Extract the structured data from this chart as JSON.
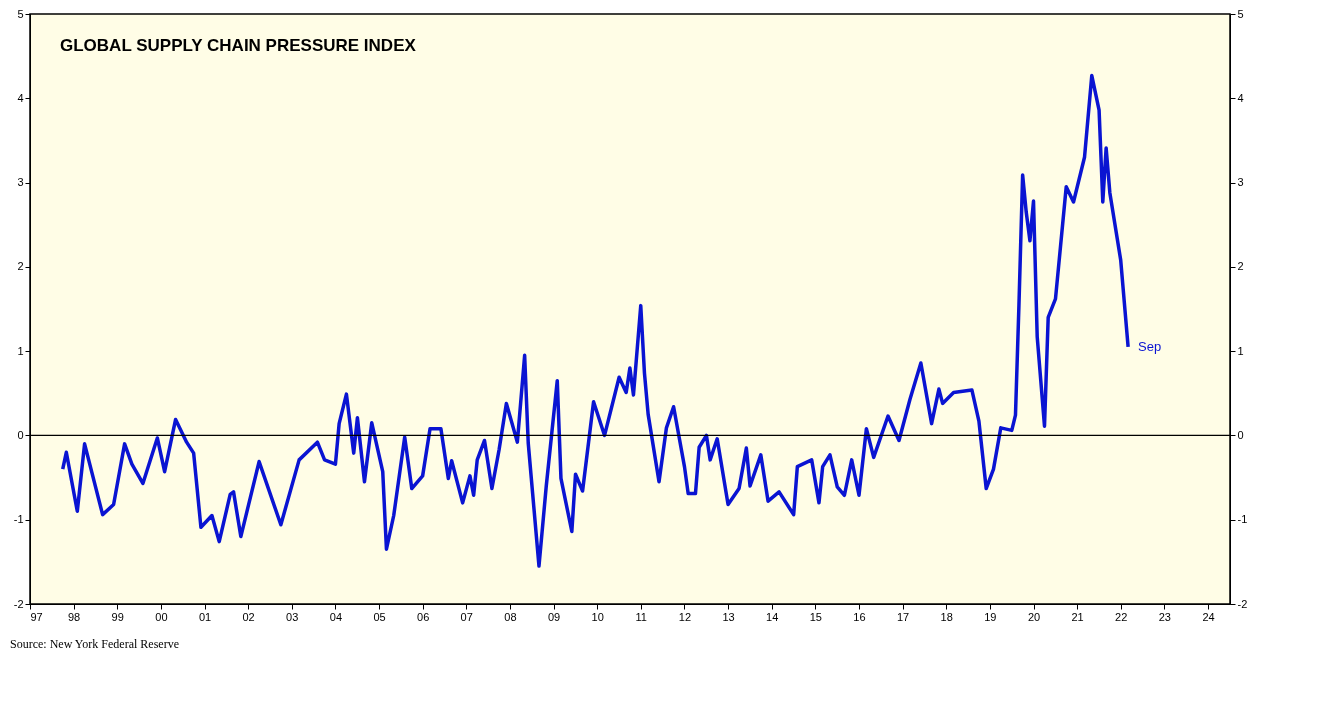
{
  "chart_data": {
    "type": "line",
    "title": "GLOBAL SUPPLY CHAIN PRESSURE INDEX",
    "x": [
      "1998-04",
      "1998-05",
      "1998-08",
      "1998-10",
      "1999-03",
      "1999-06",
      "1999-09",
      "1999-11",
      "2000-02",
      "2000-06",
      "2000-08",
      "2000-11",
      "2001-02",
      "2001-04",
      "2001-06",
      "2001-09",
      "2001-11",
      "2002-02",
      "2002-03",
      "2002-05",
      "2002-10",
      "2003-04",
      "2003-09",
      "2004-02",
      "2004-04",
      "2004-07",
      "2004-08",
      "2004-10",
      "2004-12",
      "2005-01",
      "2005-03",
      "2005-05",
      "2005-08",
      "2005-09",
      "2005-11",
      "2006-02",
      "2006-04",
      "2006-07",
      "2006-09",
      "2006-12",
      "2007-02",
      "2007-03",
      "2007-06",
      "2007-08",
      "2007-09",
      "2007-10",
      "2007-12",
      "2008-02",
      "2008-04",
      "2008-06",
      "2008-09",
      "2008-11",
      "2008-12",
      "2009-03",
      "2009-05",
      "2009-08",
      "2009-09",
      "2009-12",
      "2010-01",
      "2010-03",
      "2010-06",
      "2010-09",
      "2011-01",
      "2011-03",
      "2011-04",
      "2011-05",
      "2011-07",
      "2011-08",
      "2011-09",
      "2011-12",
      "2012-02",
      "2012-04",
      "2012-07",
      "2012-08",
      "2012-10",
      "2012-11",
      "2013-01",
      "2013-02",
      "2013-04",
      "2013-07",
      "2013-10",
      "2013-12",
      "2014-01",
      "2014-04",
      "2014-06",
      "2014-09",
      "2015-01",
      "2015-02",
      "2015-06",
      "2015-08",
      "2015-09",
      "2015-11",
      "2016-01",
      "2016-03",
      "2016-05",
      "2016-07",
      "2016-09",
      "2016-11",
      "2017-03",
      "2017-06",
      "2017-09",
      "2017-12",
      "2018-03",
      "2018-05",
      "2018-06",
      "2018-09",
      "2019-02",
      "2019-04",
      "2019-06",
      "2019-08",
      "2019-10",
      "2020-01",
      "2020-02",
      "2020-03",
      "2020-04",
      "2020-05",
      "2020-06",
      "2020-07",
      "2020-08",
      "2020-10",
      "2020-11",
      "2021-01",
      "2021-04",
      "2021-06",
      "2021-09",
      "2021-11",
      "2022-01",
      "2022-02",
      "2022-03",
      "2022-04",
      "2022-07",
      "2022-09"
    ],
    "series": [
      {
        "color": "#0a14d2",
        "values": [
          -0.4,
          -0.2,
          -0.9,
          -0.1,
          -0.94,
          -0.82,
          -0.1,
          -0.34,
          -0.57,
          -0.03,
          -0.43,
          0.19,
          -0.08,
          -0.21,
          -1.09,
          -0.95,
          -1.26,
          -0.7,
          -0.67,
          -1.2,
          -0.31,
          -1.06,
          -0.29,
          -0.08,
          -0.29,
          -0.34,
          0.14,
          0.49,
          -0.21,
          0.21,
          -0.55,
          0.15,
          -0.43,
          -1.35,
          -0.95,
          -0.02,
          -0.63,
          -0.48,
          0.08,
          0.08,
          -0.51,
          -0.3,
          -0.8,
          -0.48,
          -0.71,
          -0.29,
          -0.06,
          -0.63,
          -0.17,
          0.38,
          -0.08,
          0.95,
          -0.09,
          -1.55,
          -0.6,
          0.65,
          -0.51,
          -1.14,
          -0.46,
          -0.66,
          0.4,
          0.0,
          0.69,
          0.51,
          0.8,
          0.48,
          1.54,
          0.74,
          0.25,
          -0.55,
          0.09,
          0.34,
          -0.37,
          -0.69,
          -0.69,
          -0.14,
          0.0,
          -0.29,
          -0.04,
          -0.82,
          -0.63,
          -0.15,
          -0.6,
          -0.23,
          -0.78,
          -0.67,
          -0.94,
          -0.37,
          -0.29,
          -0.8,
          -0.37,
          -0.23,
          -0.61,
          -0.71,
          -0.29,
          -0.71,
          0.08,
          -0.26,
          0.23,
          -0.06,
          0.43,
          0.86,
          0.14,
          0.55,
          0.38,
          0.51,
          0.54,
          0.17,
          -0.63,
          -0.4,
          0.09,
          0.06,
          0.24,
          1.54,
          3.09,
          2.65,
          2.31,
          2.78,
          1.17,
          0.11,
          1.4,
          1.62,
          2.95,
          2.77,
          3.3,
          4.27,
          3.86,
          2.77,
          3.41,
          2.88,
          2.08,
          1.05
        ]
      }
    ],
    "xlim": [
      "1997-07",
      "2025-01"
    ],
    "xticks": [
      {
        "value": "1997-07",
        "label": "97"
      },
      {
        "value": "1998-07",
        "label": "98"
      },
      {
        "value": "1999-07",
        "label": "99"
      },
      {
        "value": "2000-07",
        "label": "00"
      },
      {
        "value": "2001-07",
        "label": "01"
      },
      {
        "value": "2002-07",
        "label": "02"
      },
      {
        "value": "2003-07",
        "label": "03"
      },
      {
        "value": "2004-07",
        "label": "04"
      },
      {
        "value": "2005-07",
        "label": "05"
      },
      {
        "value": "2006-07",
        "label": "06"
      },
      {
        "value": "2007-07",
        "label": "07"
      },
      {
        "value": "2008-07",
        "label": "08"
      },
      {
        "value": "2009-07",
        "label": "09"
      },
      {
        "value": "2010-07",
        "label": "10"
      },
      {
        "value": "2011-07",
        "label": "11"
      },
      {
        "value": "2012-07",
        "label": "12"
      },
      {
        "value": "2013-07",
        "label": "13"
      },
      {
        "value": "2014-07",
        "label": "14"
      },
      {
        "value": "2015-07",
        "label": "15"
      },
      {
        "value": "2016-07",
        "label": "16"
      },
      {
        "value": "2017-07",
        "label": "17"
      },
      {
        "value": "2018-07",
        "label": "18"
      },
      {
        "value": "2019-07",
        "label": "19"
      },
      {
        "value": "2020-07",
        "label": "20"
      },
      {
        "value": "2021-07",
        "label": "21"
      },
      {
        "value": "2022-07",
        "label": "22"
      },
      {
        "value": "2023-07",
        "label": "23"
      },
      {
        "value": "2024-07",
        "label": "24"
      }
    ],
    "ylim": [
      -2,
      5
    ],
    "yticks": [
      -2,
      -1,
      0,
      1,
      2,
      3,
      4,
      5
    ],
    "y2lim": [
      -2,
      5
    ],
    "y2ticks": [
      -2,
      -1,
      0,
      1,
      2,
      3,
      4,
      5
    ],
    "ref_lines": [
      {
        "axis": "y",
        "value": 0,
        "color": "#000000"
      }
    ],
    "annotations": [
      {
        "text": "Sep",
        "x": "2022-09",
        "y": 1.05
      },
      "Source: New York Federal Reserve"
    ],
    "grid": false,
    "line_style": "solid",
    "marker": "none"
  }
}
